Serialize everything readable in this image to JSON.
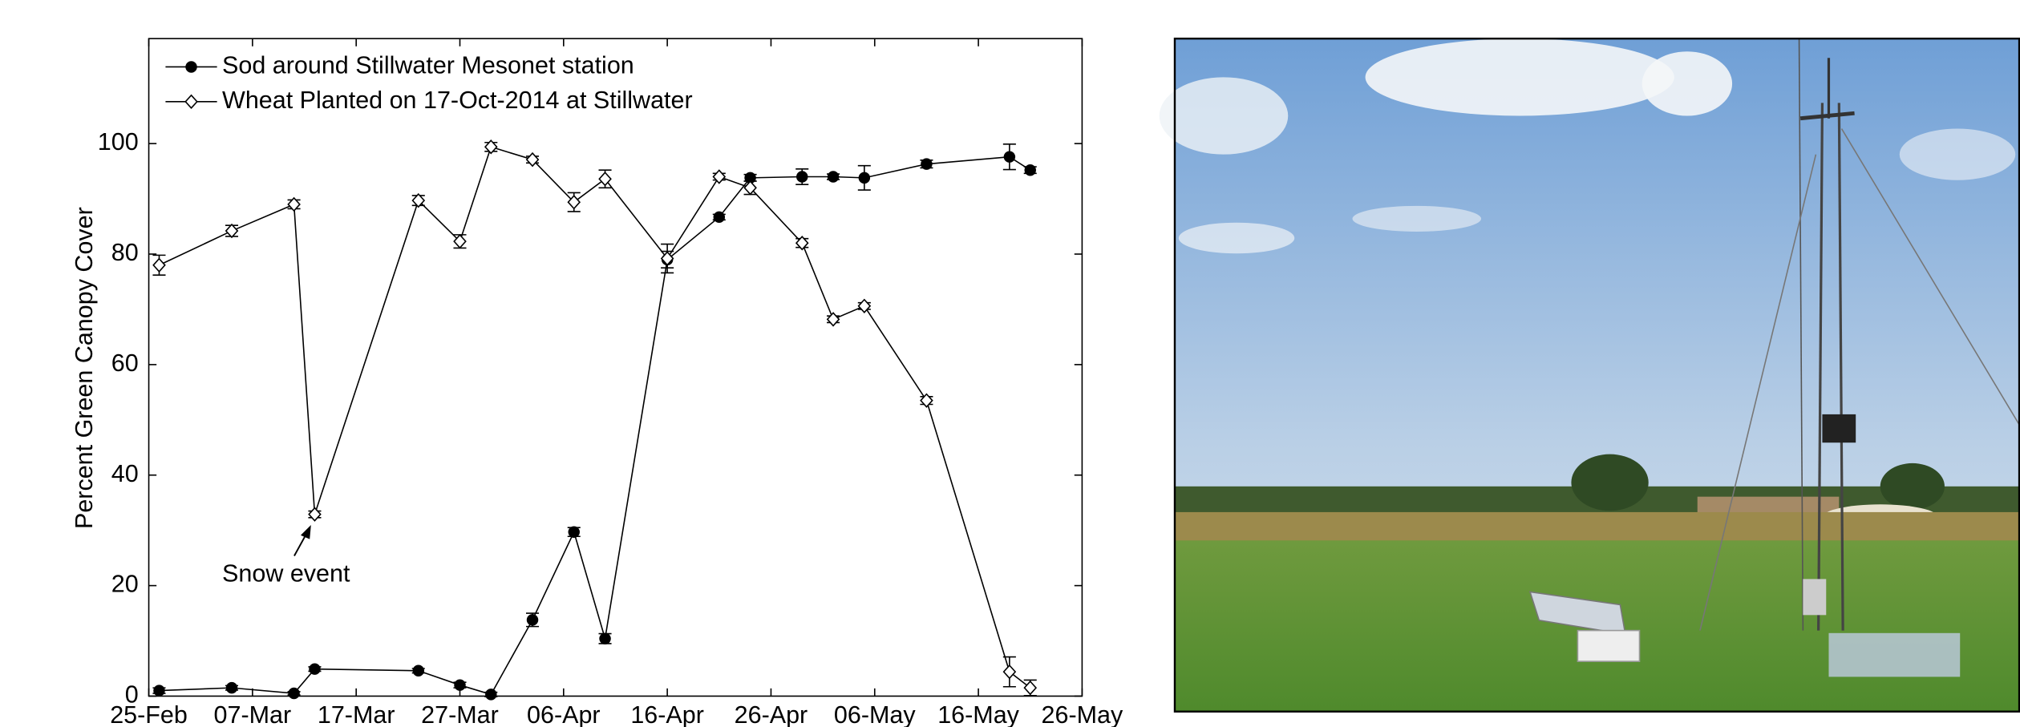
{
  "chart_data": {
    "type": "line",
    "ylabel": "Percent Green Canopy Cover",
    "annotation": "Snow event",
    "xlim": [
      "25-Feb",
      "26-May"
    ],
    "xticks": [
      "25-Feb",
      "07-Mar",
      "17-Mar",
      "27-Mar",
      "06-Apr",
      "16-Apr",
      "26-Apr",
      "06-May",
      "16-May",
      "26-May"
    ],
    "ylim": [
      0,
      119
    ],
    "yticks": [
      0,
      20,
      40,
      60,
      80,
      100
    ],
    "grid": false,
    "legend": "upper left",
    "series": [
      {
        "name": "Sod around Stillwater Mesonet station",
        "color": "#000000",
        "marker": "circle",
        "x": [
          "26-Feb",
          "05-Mar",
          "11-Mar",
          "13-Mar",
          "23-Mar",
          "27-Mar",
          "30-Mar",
          "03-Apr",
          "07-Apr",
          "10-Apr",
          "16-Apr",
          "21-Apr",
          "24-Apr",
          "29-Apr",
          "02-May",
          "05-May",
          "11-May",
          "19-May",
          "21-May"
        ],
        "values": [
          1,
          1.5,
          0.5,
          4.9,
          4.6,
          2,
          0.3,
          13.8,
          29.7,
          10.4,
          79,
          86.7,
          93.8,
          94,
          94,
          93.8,
          96.3,
          97.6,
          95.2
        ],
        "errors": [
          0.5,
          0.4,
          0.3,
          0.4,
          0.4,
          0.5,
          0.4,
          1.2,
          0.8,
          0.9,
          1.5,
          0.5,
          0.6,
          1.4,
          0.5,
          2.2,
          0.7,
          2.3,
          0.6
        ]
      },
      {
        "name": "Wheat Planted on 17-Oct-2014 at Stillwater",
        "color": "#000000",
        "marker": "diamond",
        "x": [
          "26-Feb",
          "05-Mar",
          "11-Mar",
          "13-Mar",
          "23-Mar",
          "27-Mar",
          "30-Mar",
          "03-Apr",
          "07-Apr",
          "10-Apr",
          "16-Apr",
          "21-Apr",
          "24-Apr",
          "29-Apr",
          "02-May",
          "05-May",
          "11-May",
          "19-May",
          "21-May"
        ],
        "values": [
          78,
          84.2,
          89,
          32.9,
          89.7,
          82.3,
          99.4,
          97.1,
          89.4,
          93.6,
          79.2,
          94,
          92,
          82,
          68.2,
          70.6,
          53.5,
          4.4,
          1.5
        ],
        "errors": [
          1.8,
          1,
          0.8,
          0.6,
          0.9,
          1.2,
          0.8,
          0.6,
          1.7,
          1.6,
          2.6,
          0.6,
          1.2,
          0.8,
          0.6,
          0.6,
          0.7,
          2.7,
          1.4
        ]
      }
    ]
  }
}
